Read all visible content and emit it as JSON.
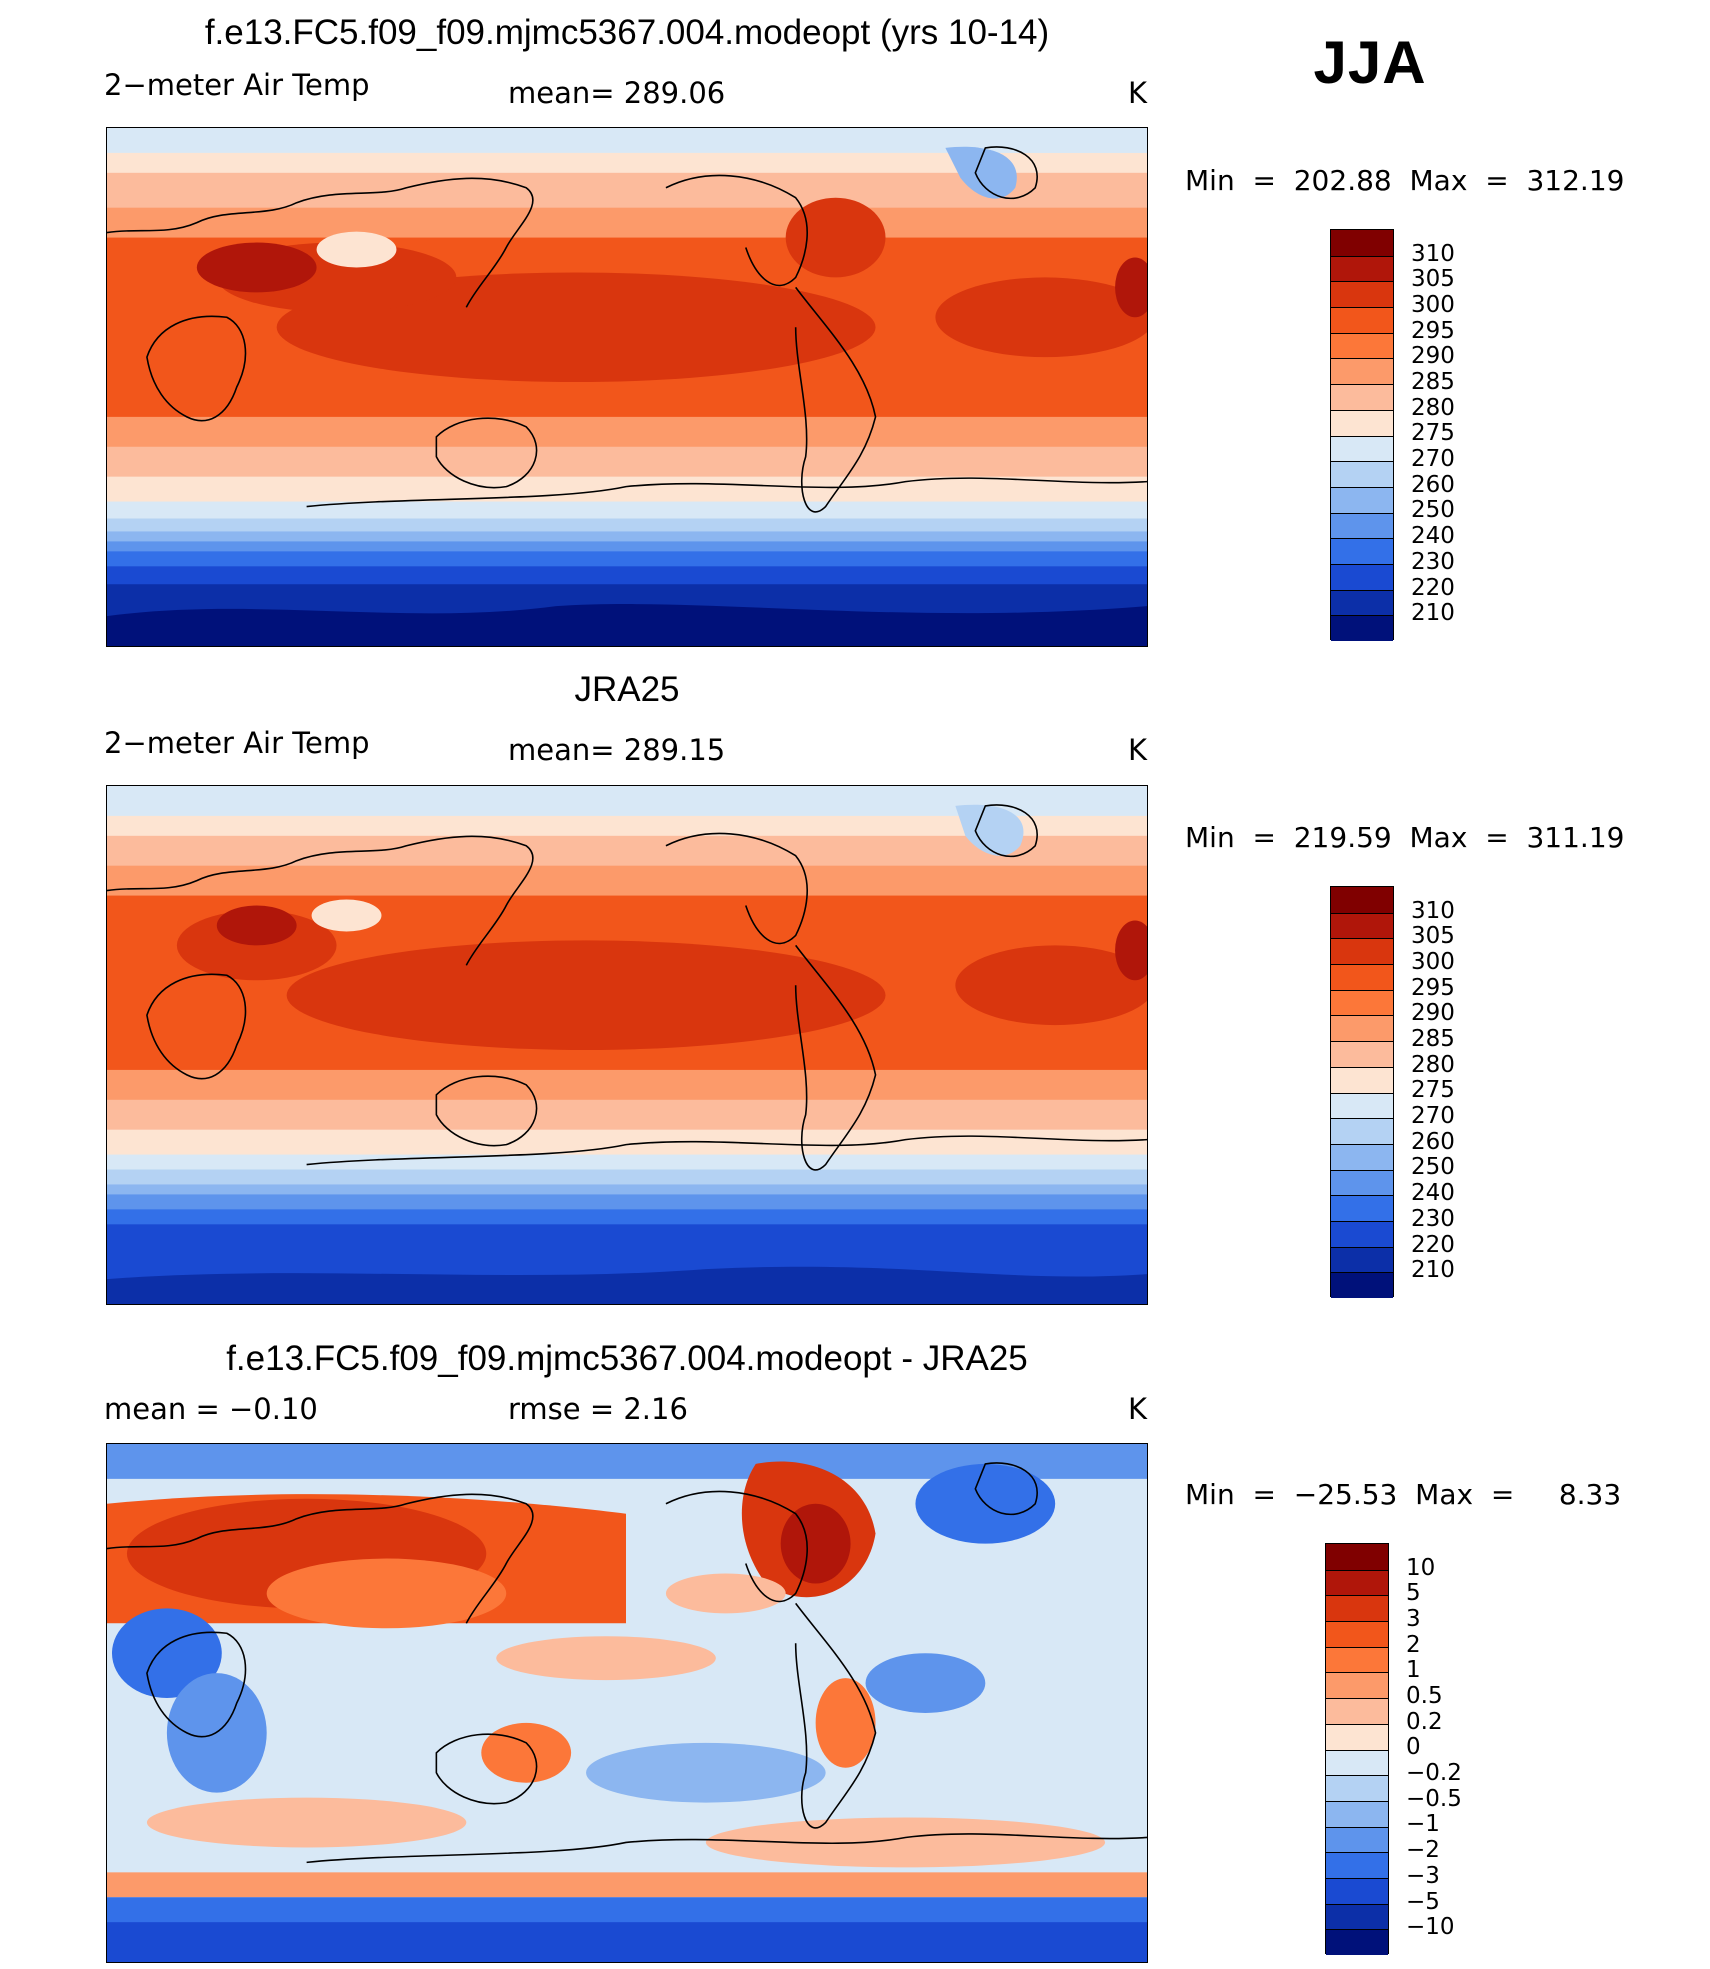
{
  "season": "JJA",
  "panels": [
    {
      "id": "model",
      "title": "f.e13.FC5.f09_f09.mjmc5367.004.modeopt (yrs 10-14)",
      "left_text": "2−meter Air Temp",
      "center_text": "mean=  289.06",
      "units": "K",
      "minmax": "Min  =  202.88  Max  =  312.19",
      "colorbar": {
        "labels": [
          "310",
          "305",
          "300",
          "295",
          "290",
          "285",
          "280",
          "275",
          "270",
          "260",
          "250",
          "240",
          "230",
          "220",
          "210"
        ],
        "colors": [
          "#800000",
          "#b0160a",
          "#d9360e",
          "#f2561b",
          "#fc7739",
          "#fc9a6a",
          "#fcbb9c",
          "#fde4d2",
          "#d8e8f6",
          "#b4d2f3",
          "#8cb6f0",
          "#5e94ec",
          "#3370e8",
          "#1a4ad2",
          "#0c2fa8",
          "#00117a"
        ]
      }
    },
    {
      "id": "obs",
      "title": "JRA25",
      "left_text": "2−meter Air Temp",
      "center_text": "mean=  289.15",
      "units": "K",
      "minmax": "Min  =  219.59  Max  =  311.19",
      "colorbar": {
        "labels": [
          "310",
          "305",
          "300",
          "295",
          "290",
          "285",
          "280",
          "275",
          "270",
          "260",
          "250",
          "240",
          "230",
          "220",
          "210"
        ],
        "colors": [
          "#800000",
          "#b0160a",
          "#d9360e",
          "#f2561b",
          "#fc7739",
          "#fc9a6a",
          "#fcbb9c",
          "#fde4d2",
          "#d8e8f6",
          "#b4d2f3",
          "#8cb6f0",
          "#5e94ec",
          "#3370e8",
          "#1a4ad2",
          "#0c2fa8",
          "#00117a"
        ]
      }
    },
    {
      "id": "diff",
      "title": "f.e13.FC5.f09_f09.mjmc5367.004.modeopt - JRA25",
      "left_text": "mean  =    −0.10",
      "center_text": "rmse  =     2.16",
      "units": "K",
      "minmax": "Min  =  −25.53  Max  =     8.33",
      "colorbar": {
        "labels": [
          "10",
          "5",
          "3",
          "2",
          "1",
          "0.5",
          "0.2",
          "0",
          "−0.2",
          "−0.5",
          "−1",
          "−2",
          "−3",
          "−5",
          "−10"
        ],
        "colors": [
          "#800000",
          "#b0160a",
          "#d9360e",
          "#f2561b",
          "#fc7739",
          "#fc9a6a",
          "#fcbb9c",
          "#fde4d2",
          "#d8e8f6",
          "#b4d2f3",
          "#8cb6f0",
          "#5e94ec",
          "#3370e8",
          "#1a4ad2",
          "#0c2fa8",
          "#00117a"
        ]
      }
    }
  ]
}
